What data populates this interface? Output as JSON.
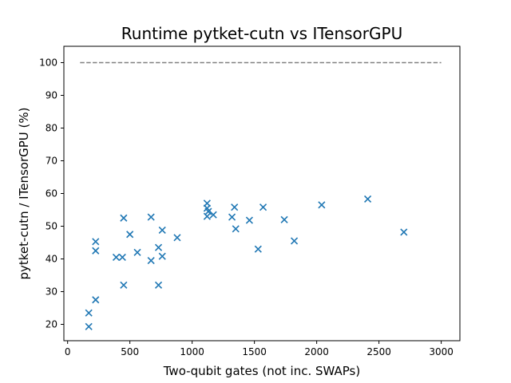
{
  "chart_data": {
    "type": "scatter",
    "title": "Runtime pytket-cutn vs ITensorGPU",
    "xlabel": "Two-qubit gates (not inc. SWAPs)",
    "ylabel": "pytket-cutn / ITensorGPU (%)",
    "xlim": [
      -30,
      3150
    ],
    "ylim": [
      15,
      105
    ],
    "xticks": [
      0,
      500,
      1000,
      1500,
      2000,
      2500,
      3000
    ],
    "yticks": [
      20,
      30,
      40,
      50,
      60,
      70,
      80,
      90,
      100
    ],
    "grid": false,
    "legend": "none",
    "series": [
      {
        "marker": "x",
        "color": "#1f77b4",
        "x": [
          170,
          170,
          225,
          225,
          225,
          390,
          440,
          450,
          450,
          500,
          560,
          670,
          670,
          730,
          730,
          760,
          760,
          880,
          1120,
          1120,
          1120,
          1130,
          1170,
          1320,
          1340,
          1350,
          1460,
          1530,
          1570,
          1740,
          1820,
          2040,
          2410,
          2700
        ],
        "y": [
          19.3,
          23.5,
          27.5,
          42.5,
          45.3,
          40.5,
          40.5,
          32.0,
          52.5,
          47.5,
          42.0,
          39.5,
          52.8,
          32.0,
          43.5,
          48.8,
          40.8,
          46.5,
          57.0,
          55.5,
          53.0,
          54.5,
          53.5,
          52.8,
          55.8,
          49.2,
          51.8,
          43.0,
          55.8,
          52.0,
          45.5,
          56.5,
          58.3,
          48.2
        ]
      }
    ],
    "reference_line": {
      "x": [
        100,
        3000
      ],
      "y": [
        100,
        100
      ],
      "style": "dashed",
      "color": "#808080"
    }
  }
}
